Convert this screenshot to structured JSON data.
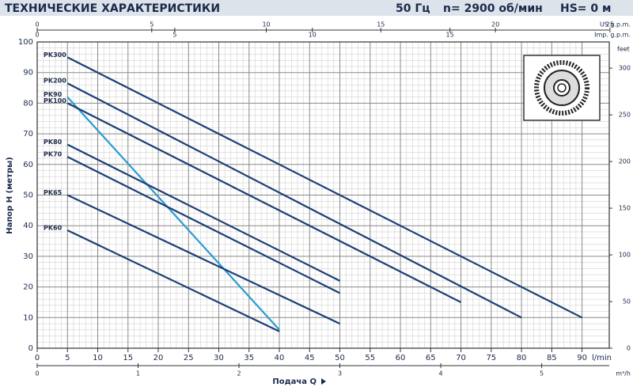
{
  "chart_data": {
    "type": "line",
    "title": "ТЕХНИЧЕСКИЕ ХАРАКТЕРИСТИКИ",
    "header_items": [
      "50 Гц",
      "n= 2900 об/мин",
      "HS= 0 м"
    ],
    "y_label": "Напор Н (метры)",
    "x_label": "Подача Q",
    "x_unit": "l/min",
    "xlim": [
      0,
      94.5
    ],
    "xticks": [
      0,
      5,
      10,
      15,
      20,
      25,
      30,
      35,
      40,
      45,
      50,
      55,
      60,
      65,
      70,
      75,
      80,
      85,
      90
    ],
    "ylim": [
      0,
      100
    ],
    "yticks": [
      0,
      10,
      20,
      30,
      40,
      50,
      60,
      70,
      80,
      90,
      100
    ],
    "grid": true,
    "minor_grid": true,
    "secondary_axes": [
      {
        "label": "US g.p.m.",
        "side": "top",
        "lim": [
          0,
          24.97
        ],
        "ticks": [
          0,
          5,
          10,
          15,
          20,
          25
        ]
      },
      {
        "label": "Imp. g.p.m.",
        "side": "top",
        "lim": [
          0,
          20.79
        ],
        "ticks": [
          0,
          5,
          10,
          15
        ]
      },
      {
        "label": "m³/h",
        "side": "bottom",
        "lim": [
          0,
          5.67
        ],
        "ticks": [
          0,
          1,
          2,
          3,
          4,
          5
        ]
      },
      {
        "label": "feet",
        "side": "right",
        "lim": [
          0,
          328.1
        ],
        "ticks": [
          0,
          50,
          100,
          150,
          200,
          250,
          300
        ]
      }
    ],
    "series": [
      {
        "name": "PK300",
        "color": "#1c3f75",
        "x": [
          5,
          90
        ],
        "values": [
          95,
          10
        ]
      },
      {
        "name": "PK200",
        "color": "#1c3f75",
        "x": [
          5,
          80
        ],
        "values": [
          86.5,
          10
        ]
      },
      {
        "name": "PK90",
        "color": "#2a9bd0",
        "x": [
          5,
          40
        ],
        "values": [
          82,
          6
        ]
      },
      {
        "name": "PK100",
        "color": "#1c3f75",
        "x": [
          5,
          70
        ],
        "values": [
          80,
          15
        ]
      },
      {
        "name": "PK80",
        "color": "#1c3f75",
        "x": [
          5,
          50
        ],
        "values": [
          66.5,
          22
        ]
      },
      {
        "name": "PK70",
        "color": "#1c3f75",
        "x": [
          5,
          50
        ],
        "values": [
          62.5,
          18
        ]
      },
      {
        "name": "PK65",
        "color": "#1c3f75",
        "x": [
          5,
          50
        ],
        "values": [
          50,
          8
        ]
      },
      {
        "name": "PK60",
        "color": "#1c3f75",
        "x": [
          5,
          40
        ],
        "values": [
          38.5,
          5.5
        ]
      }
    ]
  }
}
